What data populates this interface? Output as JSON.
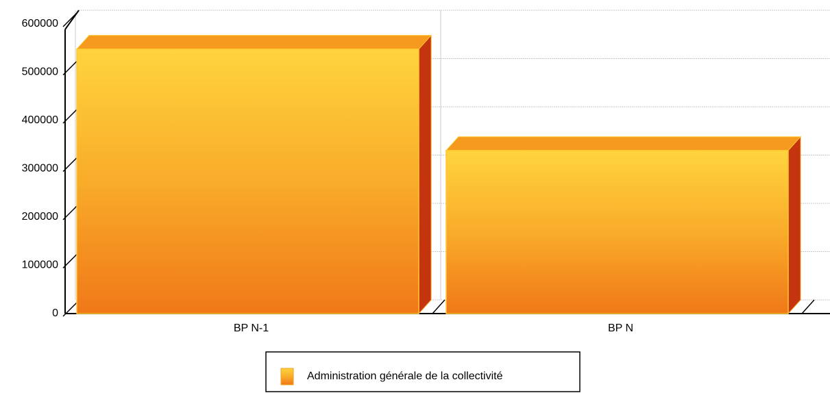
{
  "chart_data": {
    "type": "bar",
    "categories": [
      "BP N-1",
      "BP N"
    ],
    "series": [
      {
        "name": "Administration générale de la collectivité",
        "color": "#f59a1e",
        "values": [
          548000,
          338000
        ]
      }
    ],
    "ylim": [
      0,
      600000
    ],
    "yticks": [
      0,
      100000,
      200000,
      300000,
      400000,
      500000,
      600000
    ],
    "grid": true,
    "legend": "bottom"
  }
}
